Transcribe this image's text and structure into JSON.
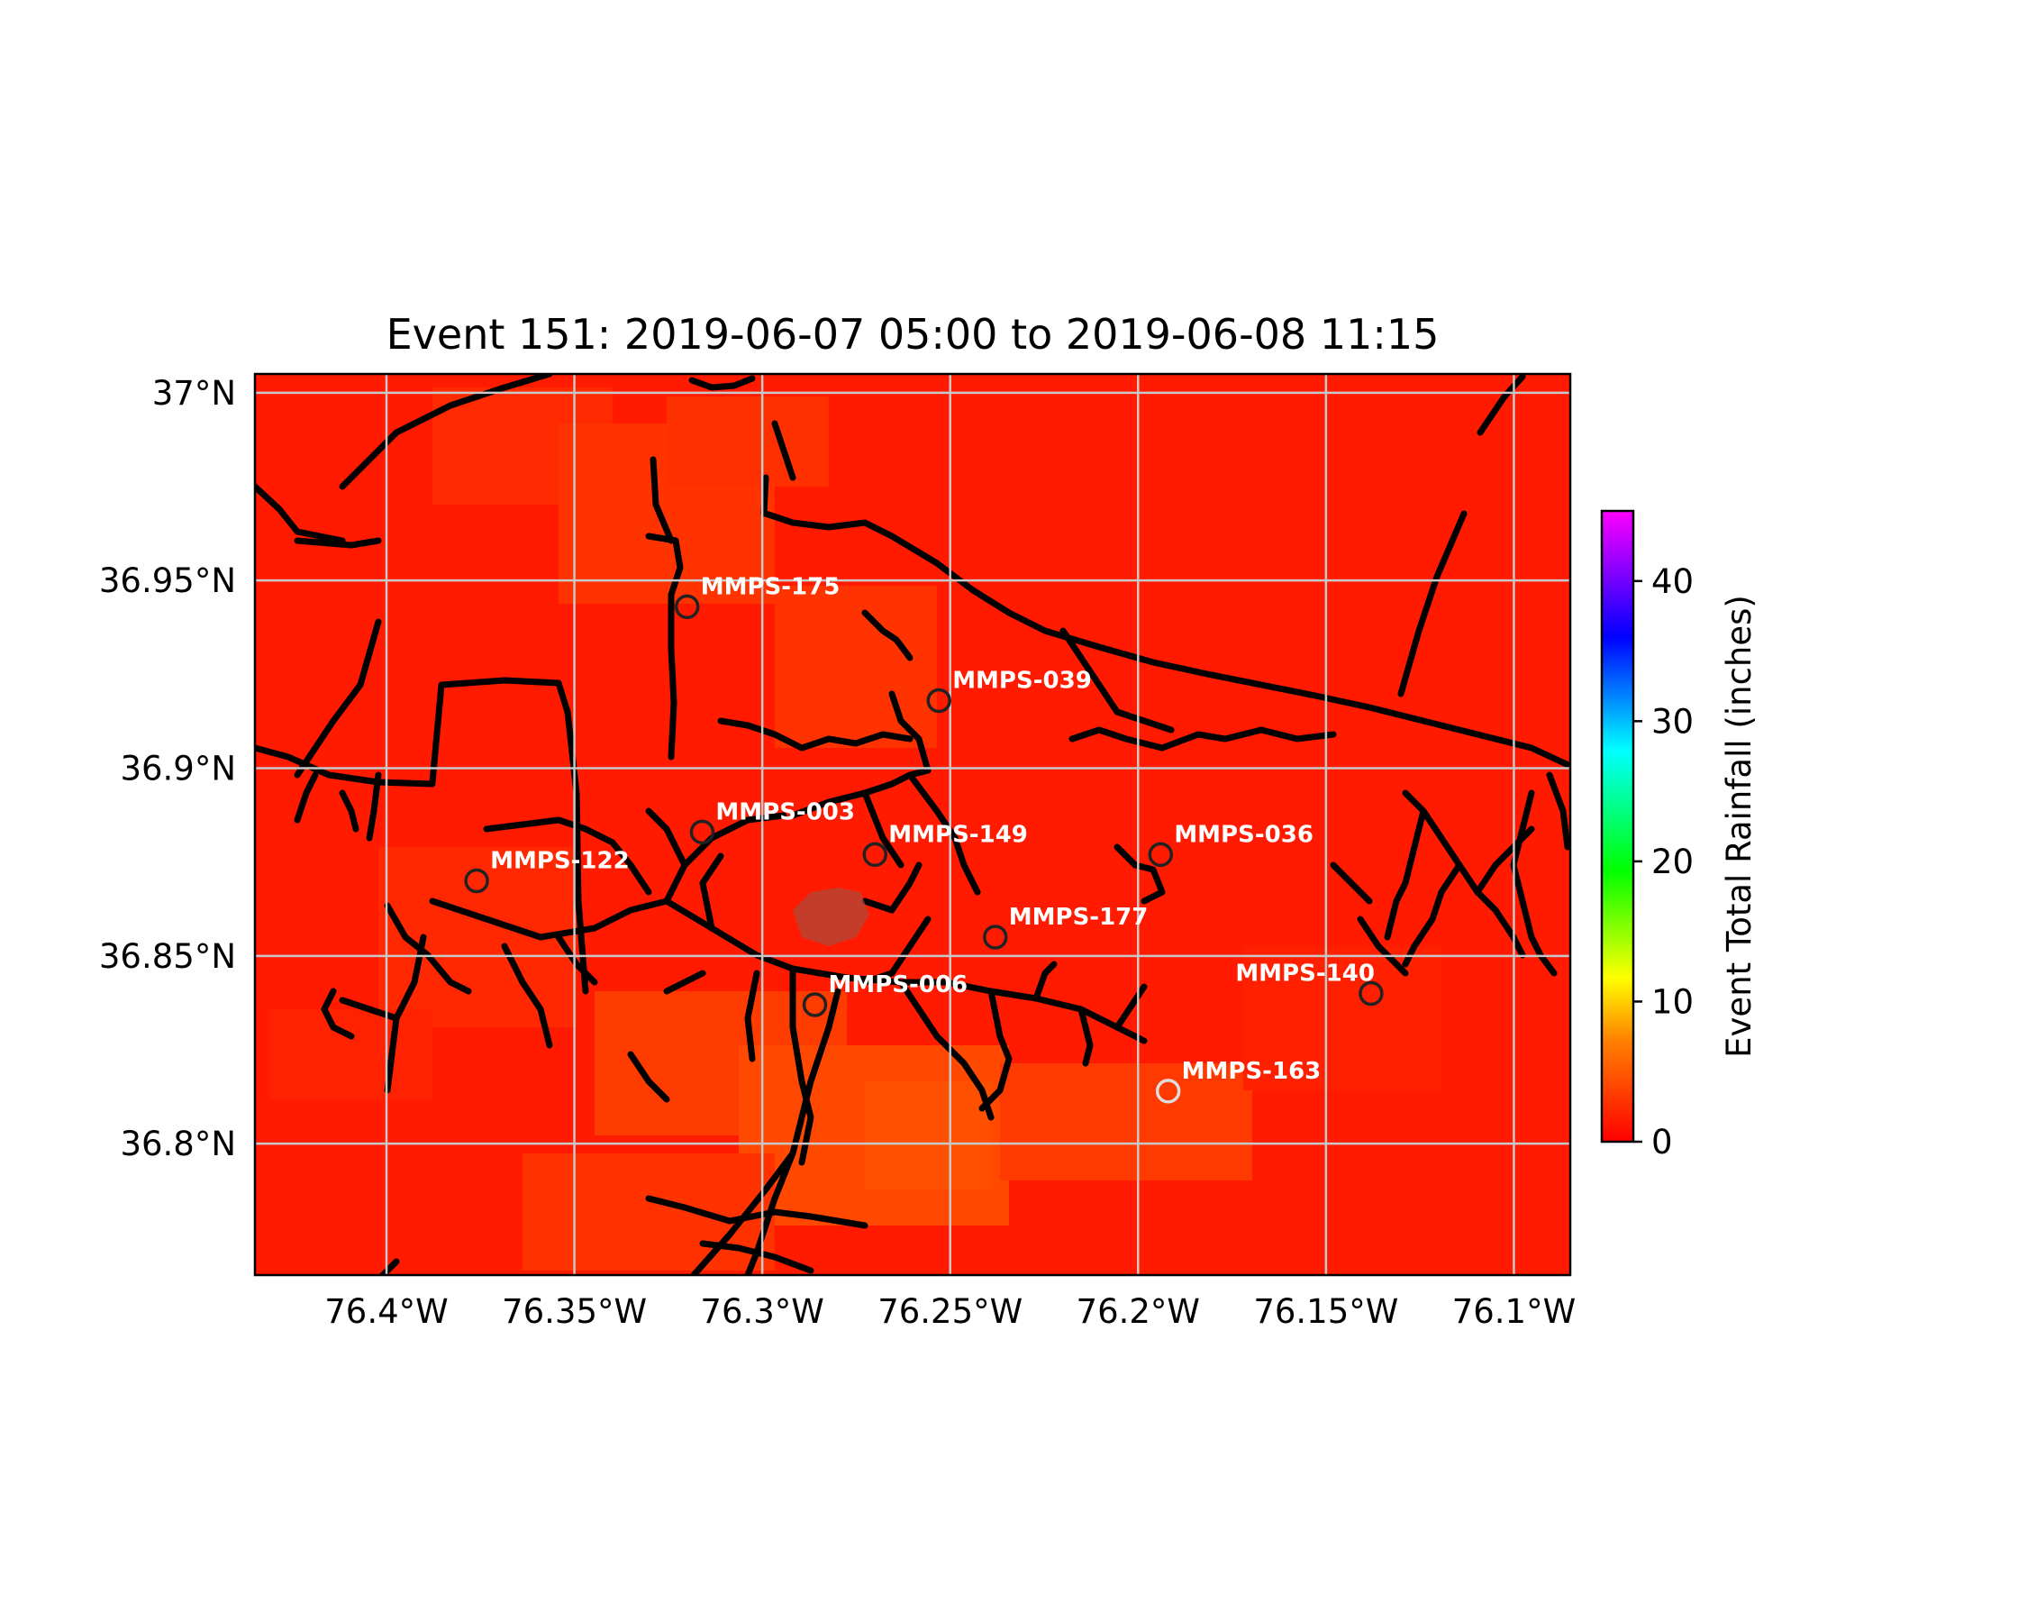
{
  "title": "Event 151: 2019-06-07 05:00 to 2019-06-08 11:15",
  "colors": {
    "background_fill": "#ff1a00",
    "coastline": "#000000",
    "grid": "#c8c8c8",
    "station_marker": "#222222"
  },
  "map": {
    "lon_range": [
      -76.435,
      -76.085
    ],
    "lat_range": [
      36.765,
      37.005
    ],
    "x_ticks": [
      {
        "lon": -76.4,
        "label": "76.4°W"
      },
      {
        "lon": -76.35,
        "label": "76.35°W"
      },
      {
        "lon": -76.3,
        "label": "76.3°W"
      },
      {
        "lon": -76.25,
        "label": "76.25°W"
      },
      {
        "lon": -76.2,
        "label": "76.2°W"
      },
      {
        "lon": -76.15,
        "label": "76.15°W"
      },
      {
        "lon": -76.1,
        "label": "76.1°W"
      }
    ],
    "y_ticks": [
      {
        "lat": 37.0,
        "label": "37°N"
      },
      {
        "lat": 36.95,
        "label": "36.95°N"
      },
      {
        "lat": 36.9,
        "label": "36.9°N"
      },
      {
        "lat": 36.85,
        "label": "36.85°N"
      },
      {
        "lat": 36.8,
        "label": "36.8°N"
      }
    ],
    "grid": true
  },
  "stations": [
    {
      "id": "MMPS-175",
      "lon": -76.32,
      "lat": 36.943,
      "label_side": "right"
    },
    {
      "id": "MMPS-039",
      "lon": -76.253,
      "lat": 36.918,
      "label_side": "right"
    },
    {
      "id": "MMPS-003",
      "lon": -76.316,
      "lat": 36.883,
      "label_side": "right"
    },
    {
      "id": "MMPS-149",
      "lon": -76.27,
      "lat": 36.877,
      "label_side": "right"
    },
    {
      "id": "MMPS-036",
      "lon": -76.194,
      "lat": 36.877,
      "label_side": "right"
    },
    {
      "id": "MMPS-122",
      "lon": -76.376,
      "lat": 36.87,
      "label_side": "right"
    },
    {
      "id": "MMPS-177",
      "lon": -76.238,
      "lat": 36.855,
      "label_side": "right"
    },
    {
      "id": "MMPS-006",
      "lon": -76.286,
      "lat": 36.837,
      "label_side": "right"
    },
    {
      "id": "MMPS-140",
      "lon": -76.138,
      "lat": 36.84,
      "label_side": "left"
    },
    {
      "id": "MMPS-163",
      "lon": -76.192,
      "lat": 36.814,
      "label_side": "right",
      "marker_color": "#dddddd"
    }
  ],
  "colorbar": {
    "label": "Event Total Rainfall (inches)",
    "min": 0,
    "max": 45,
    "ticks": [
      {
        "value": 0,
        "label": "0"
      },
      {
        "value": 10,
        "label": "10"
      },
      {
        "value": 20,
        "label": "20"
      },
      {
        "value": 30,
        "label": "30"
      },
      {
        "value": 40,
        "label": "40"
      }
    ],
    "colors": [
      "#ff0000",
      "#ff8000",
      "#ffff00",
      "#00ff00",
      "#00ffff",
      "#0000ff",
      "#ff00ff"
    ]
  }
}
